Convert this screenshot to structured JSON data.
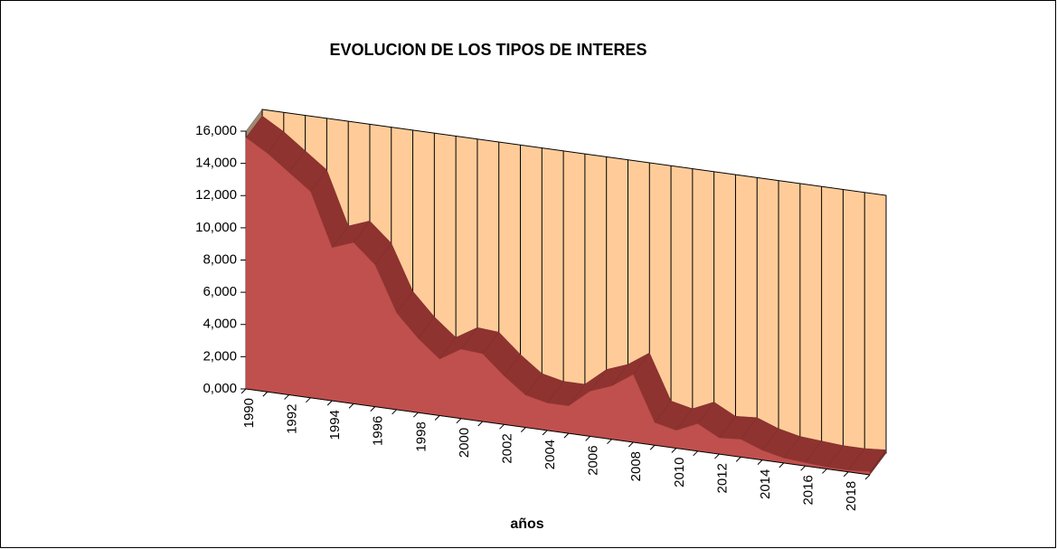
{
  "chart_data": {
    "type": "area",
    "title": "EVOLUCION DE LOS TIPOS DE INTERES",
    "x_label": "años",
    "categories": [
      "1990",
      null,
      "1992",
      null,
      "1994",
      null,
      "1996",
      null,
      "1998",
      null,
      "2000",
      null,
      "2002",
      null,
      "2004",
      null,
      "2006",
      null,
      "2008",
      null,
      "2010",
      null,
      "2012",
      null,
      "2014",
      null,
      "2016",
      null,
      "2018",
      null
    ],
    "values": [
      15.6,
      14.8,
      13.8,
      12.8,
      9.5,
      10.0,
      8.8,
      6.0,
      4.6,
      3.5,
      4.3,
      4.2,
      3.0,
      2.0,
      1.7,
      1.7,
      2.8,
      3.3,
      4.2,
      1.4,
      1.1,
      1.7,
      1.0,
      1.1,
      0.6,
      0.3,
      0.2,
      0.1,
      0.1,
      0.2
    ],
    "color": "#C0504D",
    "ylim": [
      0,
      16
    ],
    "yticks": [
      {
        "value": 0,
        "label": "0,000"
      },
      {
        "value": 2,
        "label": "2,000"
      },
      {
        "value": 4,
        "label": "4,000"
      },
      {
        "value": 6,
        "label": "6,000"
      },
      {
        "value": 8,
        "label": "8,000"
      },
      {
        "value": 10,
        "label": "10,000"
      },
      {
        "value": 12,
        "label": "12,000"
      },
      {
        "value": 14,
        "label": "14,000"
      },
      {
        "value": 16,
        "label": "16,000"
      }
    ],
    "grid": true
  }
}
